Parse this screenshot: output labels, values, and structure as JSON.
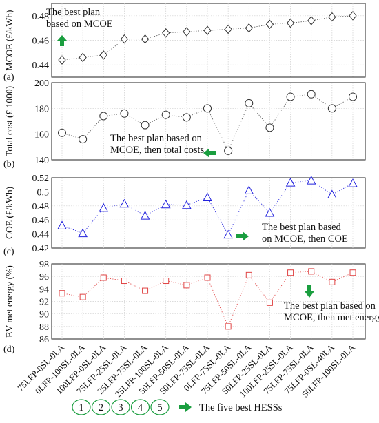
{
  "chart_data": {
    "type": "scatter",
    "categories": [
      "75LFP-0SL-0LA",
      "0LFP-100SL-0LA",
      "100LFP-0SL-0LA",
      "75LFP-25SL-0LA",
      "25LFP-75SL-0LA",
      "25LFP-100SL-0LA",
      "50LFP-50SL-0LA",
      "50LFP-75SL-0LA",
      "0LFP-75SL-0LA",
      "75LFP-50SL-0LA",
      "50LFP-25SL-0LA",
      "100LFP-25SL-0LA",
      "75LFP-75SL-0LA",
      "75LFP-0SL-40LA",
      "50LFP-100SL-0LA"
    ],
    "panels": [
      {
        "id": "a",
        "label": "(a)",
        "ylabel": "MCOE (£/kWh)",
        "ylim": [
          0.43,
          0.49
        ],
        "yticks": [
          0.44,
          0.46,
          0.48
        ],
        "marker": "diamond",
        "color": "#333333",
        "values": [
          0.444,
          0.446,
          0.448,
          0.461,
          0.461,
          0.466,
          0.467,
          0.468,
          0.469,
          0.47,
          0.473,
          0.474,
          0.476,
          0.479,
          0.48
        ],
        "annotation": {
          "lines": [
            "The best plan",
            "based on MCOE"
          ],
          "arrow": "up"
        }
      },
      {
        "id": "b",
        "label": "(b)",
        "ylabel": "Total cost (£ 1000)",
        "ylim": [
          140,
          200
        ],
        "yticks": [
          140,
          160,
          180,
          200
        ],
        "marker": "circle",
        "color": "#333333",
        "values": [
          161,
          156,
          174,
          176,
          167,
          175,
          173,
          180,
          147,
          184,
          165,
          189,
          191,
          180,
          189
        ],
        "annotation": {
          "lines": [
            "The best plan based on",
            "MCOE, then total costs"
          ],
          "arrow": "left"
        }
      },
      {
        "id": "c",
        "label": "(c)",
        "ylabel": "COE (£/kWh)",
        "ylim": [
          0.42,
          0.52
        ],
        "yticks": [
          0.42,
          0.44,
          0.46,
          0.48,
          0.5,
          0.52
        ],
        "marker": "triangle",
        "color": "#2222dd",
        "values": [
          0.452,
          0.441,
          0.477,
          0.483,
          0.466,
          0.482,
          0.481,
          0.492,
          0.439,
          0.502,
          0.47,
          0.513,
          0.516,
          0.496,
          0.512
        ],
        "annotation": {
          "lines": [
            "The best plan based",
            "on MCOE, then COE"
          ],
          "arrow": "right"
        }
      },
      {
        "id": "d",
        "label": "(d)",
        "ylabel": "EV met energy (%)",
        "ylim": [
          86,
          98
        ],
        "yticks": [
          86,
          88,
          90,
          92,
          94,
          96,
          98
        ],
        "marker": "square",
        "color": "#e04444",
        "values": [
          93.3,
          92.7,
          95.8,
          95.3,
          93.7,
          95.3,
          94.6,
          95.8,
          88.0,
          96.2,
          91.8,
          96.6,
          96.8,
          95.1,
          96.6
        ],
        "annotation": {
          "lines": [
            "The best plan based on",
            "MCOE, then met energy"
          ],
          "arrow": "down"
        }
      }
    ],
    "legend": {
      "items": [
        "1",
        "2",
        "3",
        "4",
        "5"
      ],
      "text": "The five best HESSs"
    },
    "colors": {
      "accent_arrow": "#1a9e3f",
      "legend_circle": "#1a9e3f"
    },
    "grid": true
  }
}
